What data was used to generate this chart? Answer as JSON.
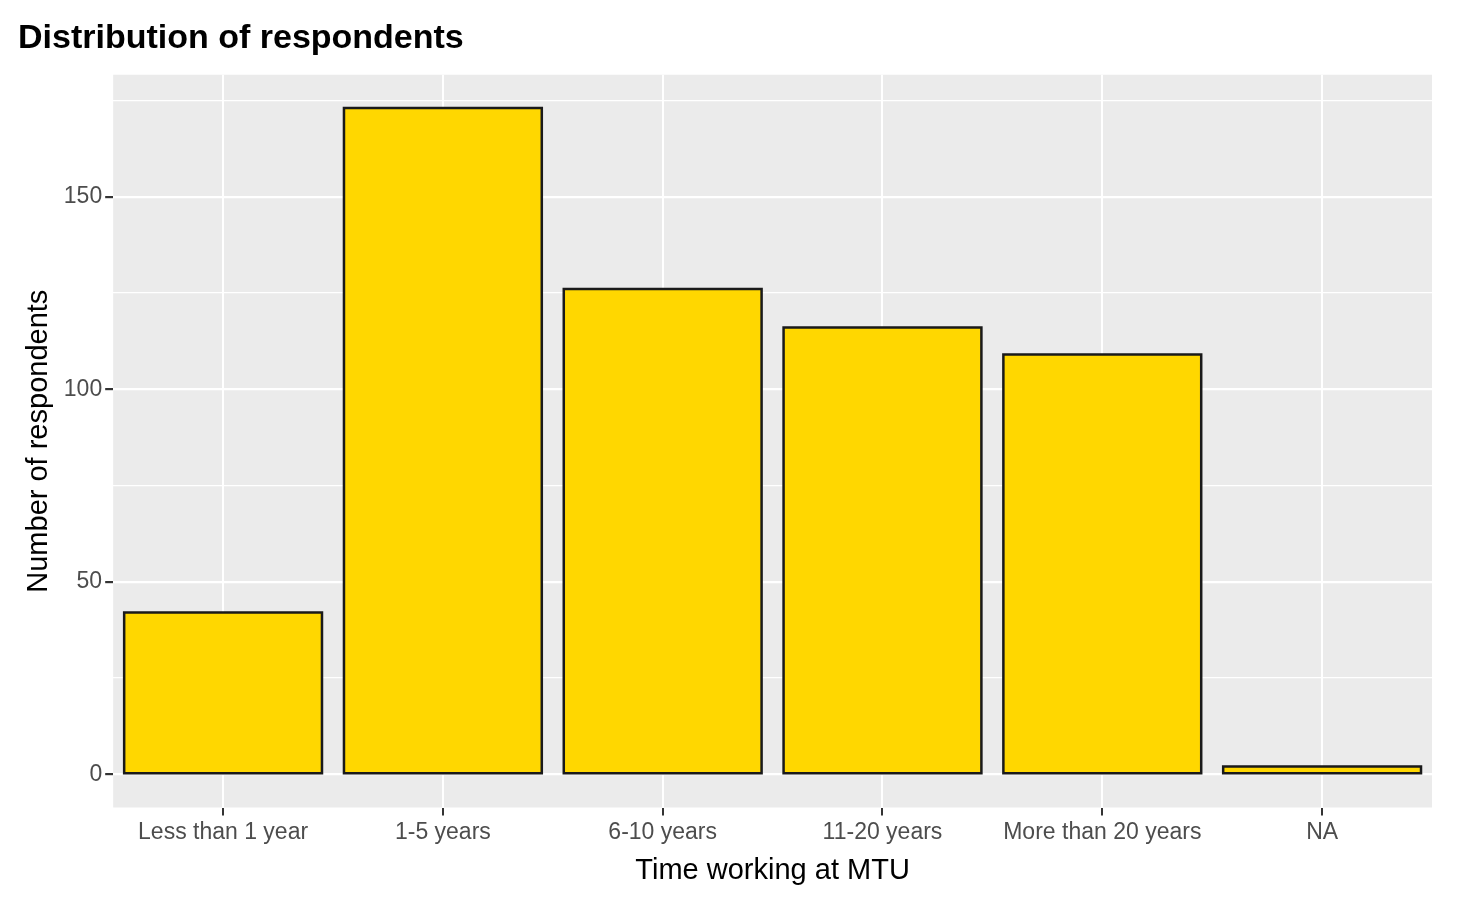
{
  "chart_data": {
    "type": "bar",
    "title": "Distribution of respondents",
    "xlabel": "Time working at MTU",
    "ylabel": "Number of respondents",
    "categories": [
      "Less than 1 year",
      "1-5 years",
      "6-10 years",
      "11-20 years",
      "More than 20 years",
      "NA"
    ],
    "values": [
      42,
      173,
      126,
      116,
      109,
      2
    ],
    "color": "#ffd700",
    "ylim": [
      -8.65,
      181.65
    ],
    "yticks": [
      0,
      {
        "value": 25,
        "label": null
      },
      50,
      {
        "value": 75,
        "label": null
      },
      100,
      {
        "value": 125,
        "label": null
      },
      150,
      {
        "value": 175,
        "label": null
      }
    ],
    "grid": true,
    "legend": false
  }
}
